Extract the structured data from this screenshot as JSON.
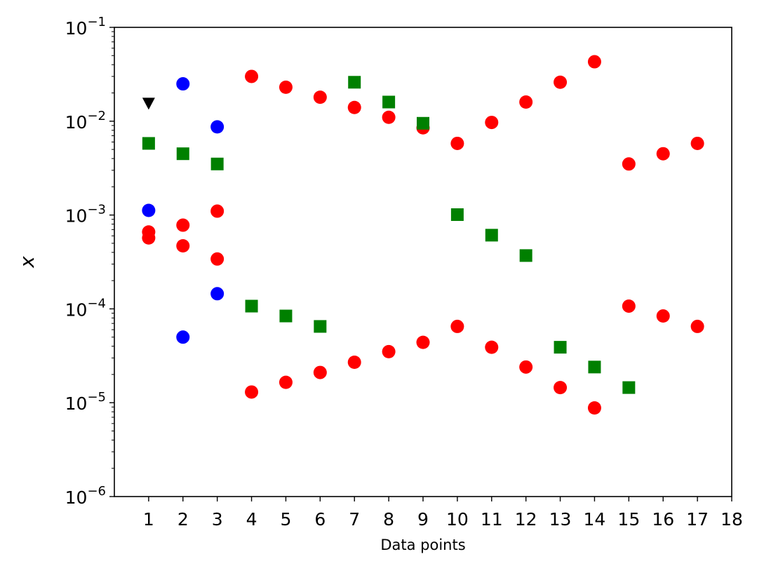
{
  "chart_data": {
    "type": "scatter",
    "title": "",
    "xlabel": "Data points",
    "ylabel": "x",
    "xlim": [
      0,
      18
    ],
    "ylim": [
      1e-06,
      0.1
    ],
    "yscale": "log",
    "grid": false,
    "legend": "none",
    "x_ticks": [
      1,
      2,
      3,
      4,
      5,
      6,
      7,
      8,
      9,
      10,
      11,
      12,
      13,
      14,
      15,
      16,
      17,
      18
    ],
    "y_ticks": [
      {
        "value": 1e-06,
        "base": "10",
        "exp": "−6"
      },
      {
        "value": 1e-05,
        "base": "10",
        "exp": "−5"
      },
      {
        "value": 0.0001,
        "base": "10",
        "exp": "−4"
      },
      {
        "value": 0.001,
        "base": "10",
        "exp": "−3"
      },
      {
        "value": 0.01,
        "base": "10",
        "exp": "−2"
      },
      {
        "value": 0.1,
        "base": "10",
        "exp": "−1"
      }
    ],
    "series": [
      {
        "marker": "circle",
        "color": "#ff0000",
        "points": [
          [
            1,
            0.00066
          ],
          [
            1,
            0.00057
          ],
          [
            2,
            0.00078
          ],
          [
            2,
            0.00047
          ],
          [
            3,
            0.0011
          ],
          [
            3,
            0.00034
          ],
          [
            4,
            0.03
          ],
          [
            5,
            0.023
          ],
          [
            6,
            0.018
          ],
          [
            7,
            0.014
          ],
          [
            8,
            0.011
          ],
          [
            9,
            0.0085
          ],
          [
            10,
            0.0058
          ],
          [
            11,
            0.0097
          ],
          [
            12,
            0.016
          ],
          [
            13,
            0.026
          ],
          [
            14,
            0.043
          ],
          [
            15,
            0.0035
          ],
          [
            16,
            0.0045
          ],
          [
            17,
            0.0058
          ],
          [
            4,
            1.3e-05
          ],
          [
            5,
            1.65e-05
          ],
          [
            6,
            2.1e-05
          ],
          [
            7,
            2.7e-05
          ],
          [
            8,
            3.5e-05
          ],
          [
            9,
            4.4e-05
          ],
          [
            10,
            6.5e-05
          ],
          [
            11,
            3.9e-05
          ],
          [
            12,
            2.4e-05
          ],
          [
            13,
            1.45e-05
          ],
          [
            14,
            8.8e-06
          ],
          [
            15,
            0.000107
          ],
          [
            16,
            8.4e-05
          ],
          [
            17,
            6.5e-05
          ]
        ]
      },
      {
        "marker": "circle",
        "color": "#0000ff",
        "points": [
          [
            1,
            0.00112
          ],
          [
            2,
            0.025
          ],
          [
            2,
            5e-05
          ],
          [
            3,
            0.0087
          ],
          [
            3,
            0.000145
          ]
        ]
      },
      {
        "marker": "square",
        "color": "#008000",
        "points": [
          [
            1,
            0.0058
          ],
          [
            2,
            0.0045
          ],
          [
            3,
            0.0035
          ],
          [
            4,
            0.000107
          ],
          [
            5,
            8.4e-05
          ],
          [
            6,
            6.5e-05
          ],
          [
            7,
            0.026
          ],
          [
            8,
            0.016
          ],
          [
            9,
            0.0095
          ],
          [
            10,
            0.00101
          ],
          [
            11,
            0.00061
          ],
          [
            12,
            0.00037
          ],
          [
            13,
            3.9e-05
          ],
          [
            14,
            2.4e-05
          ],
          [
            15,
            1.45e-05
          ]
        ]
      },
      {
        "marker": "triangle-down",
        "color": "#000000",
        "points": [
          [
            1,
            0.0155
          ]
        ]
      }
    ]
  }
}
